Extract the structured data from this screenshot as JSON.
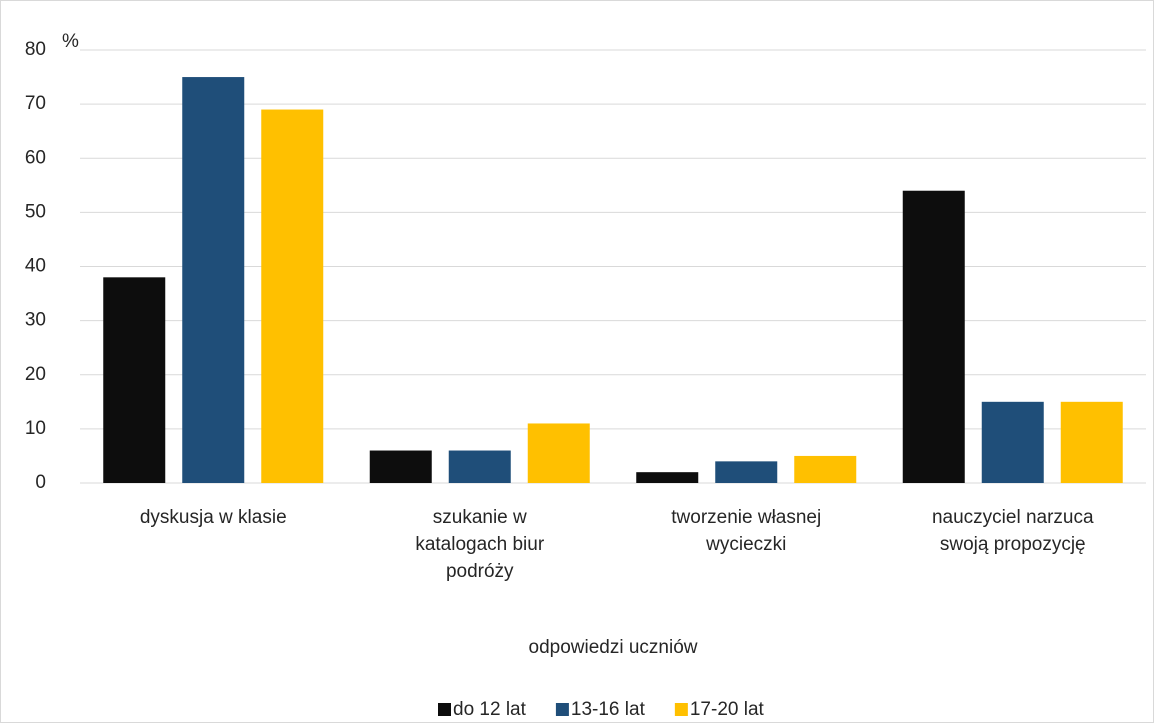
{
  "chart_data": {
    "type": "bar",
    "y_axis_label": "%",
    "x_axis_label": "odpowiedzi uczniów",
    "categories": [
      "dyskusja w klasie",
      "szukanie w katalogach biur podróży",
      "tworzenie własnej wycieczki",
      "nauczyciel narzuca swoją propozycję"
    ],
    "series": [
      {
        "name": "do 12 lat",
        "color": "#0d0d0d",
        "values": [
          38,
          6,
          2,
          54
        ]
      },
      {
        "name": "13-16 lat",
        "color": "#1f4e79",
        "values": [
          75,
          6,
          4,
          15
        ]
      },
      {
        "name": "17-20 lat",
        "color": "#ffc000",
        "values": [
          69,
          11,
          5,
          15
        ]
      }
    ],
    "ylim": [
      0,
      80
    ],
    "yticks": [
      0,
      10,
      20,
      30,
      40,
      50,
      60,
      70,
      80
    ],
    "grid": true,
    "legend": "bottom"
  }
}
